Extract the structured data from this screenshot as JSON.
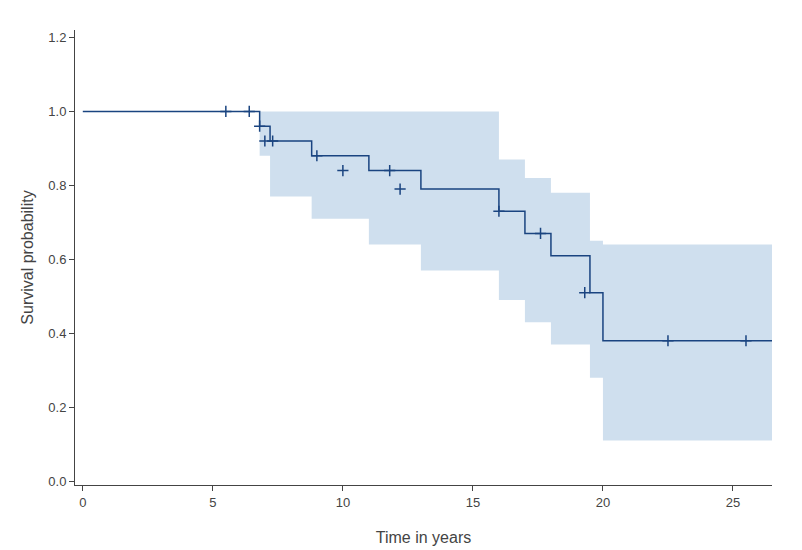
{
  "chart_data": {
    "type": "step",
    "xlabel": "Time in years",
    "ylabel": "Survival probability",
    "xlim": [
      -0.3,
      26.5
    ],
    "ylim": [
      -0.01,
      1.22
    ],
    "xticks": [
      0,
      5,
      10,
      15,
      20,
      25
    ],
    "yticks": [
      {
        "value": 0.0,
        "label": "0.0"
      },
      0.2,
      0.4,
      0.6,
      0.8,
      {
        "value": 1.0,
        "label": "1.0"
      },
      1.2
    ],
    "grid": false,
    "series": [
      {
        "type": "band",
        "color": "#a8c4e0",
        "x": [
          0,
          6.0,
          6.8,
          7.2,
          7.5,
          8.8,
          9.5,
          11.0,
          12.0,
          13.0,
          15.0,
          16.0,
          17.0,
          17.5,
          18.0,
          19.5,
          20.0,
          25.5,
          26.5
        ],
        "lower": [
          1.0,
          1.0,
          0.88,
          0.77,
          0.77,
          0.71,
          0.71,
          0.64,
          0.64,
          0.57,
          0.57,
          0.49,
          0.43,
          0.43,
          0.37,
          0.28,
          0.11,
          0.11,
          0.11
        ],
        "upper": [
          1.0,
          1.0,
          1.0,
          1.0,
          1.0,
          1.0,
          1.0,
          1.0,
          1.0,
          1.0,
          1.0,
          0.87,
          0.82,
          0.82,
          0.78,
          0.65,
          0.64,
          0.64,
          0.64
        ]
      },
      {
        "type": "step",
        "color": "#1a4480",
        "x": [
          0,
          6.0,
          6.8,
          7.2,
          7.5,
          8.8,
          9.5,
          11.0,
          12.0,
          13.0,
          15.0,
          16.0,
          17.0,
          17.5,
          18.0,
          19.5,
          20.0,
          25.5,
          26.5
        ],
        "values": [
          1.0,
          1.0,
          0.96,
          0.92,
          0.92,
          0.88,
          0.88,
          0.84,
          0.84,
          0.79,
          0.79,
          0.73,
          0.67,
          0.67,
          0.61,
          0.51,
          0.38,
          0.38,
          0.38
        ]
      },
      {
        "type": "scatter",
        "marker": "plus",
        "color": "#1a4480",
        "x": [
          5.5,
          6.4,
          6.8,
          7.0,
          7.3,
          9.0,
          10.0,
          11.8,
          12.2,
          16.0,
          17.6,
          19.3,
          22.5,
          25.5
        ],
        "values": [
          1.0,
          1.0,
          0.96,
          0.92,
          0.92,
          0.88,
          0.84,
          0.84,
          0.79,
          0.73,
          0.67,
          0.51,
          0.38,
          0.38
        ]
      }
    ]
  }
}
